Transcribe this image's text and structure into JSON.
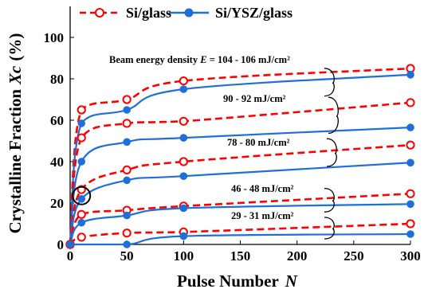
{
  "chart_data": {
    "type": "line",
    "xlabel": "Pulse Number",
    "xlabel_var": "N",
    "ylabel": "Crystalline Fraction",
    "ylabel_var": "Xc",
    "ylabel_unit": "(%)",
    "xlim": [
      0,
      300
    ],
    "ylim": [
      0,
      115
    ],
    "xticks": [
      0,
      50,
      100,
      150,
      200,
      250,
      300
    ],
    "yticks": [
      0,
      20,
      40,
      60,
      80,
      100
    ],
    "grid": false,
    "legend_position": "top",
    "legend": [
      {
        "label": "Si/glass",
        "color": "#ff0000",
        "style": "dashed",
        "marker": "open-circle"
      },
      {
        "label": "Si/YSZ/glass",
        "color": "#1f6fd8",
        "style": "solid",
        "marker": "filled-circle"
      }
    ],
    "series": [
      {
        "group": "Si/glass",
        "energy": "104 - 106 mJ/cm²",
        "x": [
          0,
          10,
          50,
          100,
          300
        ],
        "y": [
          0,
          65,
          70,
          79,
          85
        ]
      },
      {
        "group": "Si/YSZ/glass",
        "energy": "104 - 106 mJ/cm²",
        "x": [
          0,
          10,
          50,
          100,
          300
        ],
        "y": [
          0,
          58.5,
          65,
          75,
          82
        ]
      },
      {
        "group": "Si/glass",
        "energy": "90 - 92 mJ/cm²",
        "x": [
          0,
          10,
          50,
          100,
          300
        ],
        "y": [
          0,
          51.5,
          58.5,
          59.5,
          68.5
        ]
      },
      {
        "group": "Si/YSZ/glass",
        "energy": "90 - 92 mJ/cm²",
        "x": [
          0,
          10,
          50,
          100,
          300
        ],
        "y": [
          0,
          40,
          49.5,
          51.5,
          56.5
        ]
      },
      {
        "group": "Si/glass",
        "energy": "78 - 80 mJ/cm²",
        "x": [
          0,
          10,
          50,
          100,
          300
        ],
        "y": [
          0,
          26.5,
          36,
          40,
          48
        ]
      },
      {
        "group": "Si/YSZ/glass",
        "energy": "78 - 80 mJ/cm²",
        "x": [
          0,
          10,
          50,
          100,
          300
        ],
        "y": [
          0,
          22,
          31,
          33,
          39.5
        ]
      },
      {
        "group": "Si/glass",
        "energy": "46 - 48 mJ/cm²",
        "x": [
          0,
          10,
          50,
          100,
          300
        ],
        "y": [
          0,
          14.5,
          16.5,
          18.5,
          24.5
        ]
      },
      {
        "group": "Si/YSZ/glass",
        "energy": "46 - 48 mJ/cm²",
        "x": [
          0,
          10,
          50,
          100,
          300
        ],
        "y": [
          0,
          10.5,
          14,
          17.5,
          19.5
        ]
      },
      {
        "group": "Si/glass",
        "energy": "29 - 31 mJ/cm²",
        "x": [
          0,
          10,
          50,
          100,
          300
        ],
        "y": [
          0,
          3.5,
          5.5,
          6,
          10
        ]
      },
      {
        "group": "Si/YSZ/glass",
        "energy": "29 - 31 mJ/cm²",
        "x": [
          0,
          50,
          100,
          300
        ],
        "y": [
          0,
          0,
          4,
          5
        ]
      }
    ],
    "annotations": [
      {
        "text": "Beam energy density E = 104 - 106 mJ/cm²"
      },
      {
        "text": "90 - 92 mJ/cm²"
      },
      {
        "text": "78 - 80 mJ/cm²"
      },
      {
        "text": "46 - 48 mJ/cm²"
      },
      {
        "text": "29 - 31 mJ/cm²"
      }
    ],
    "highlight": {
      "x": 10,
      "y": 22,
      "shape": "circle",
      "color": "#000000"
    }
  }
}
